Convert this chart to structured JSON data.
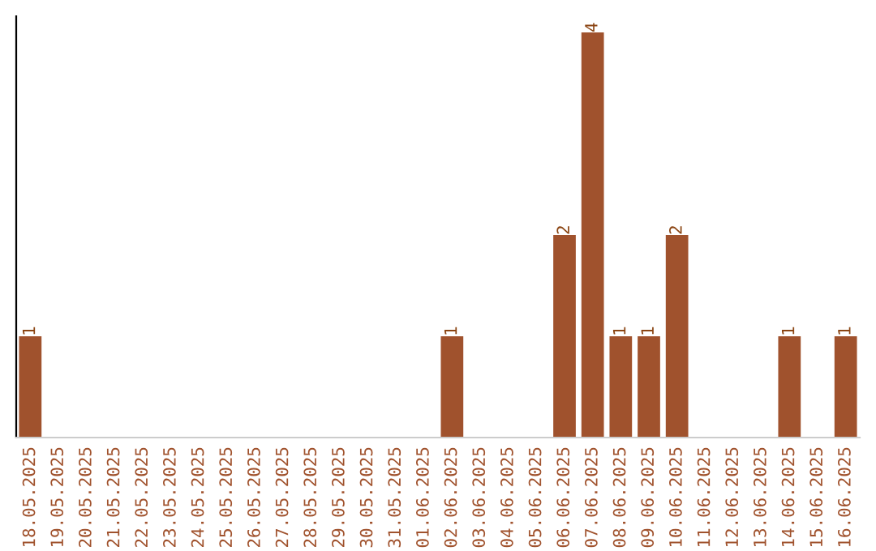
{
  "chart_data": {
    "type": "bar",
    "categories": [
      "18.05.2025",
      "19.05.2025",
      "20.05.2025",
      "21.05.2025",
      "22.05.2025",
      "23.05.2025",
      "24.05.2025",
      "25.05.2025",
      "26.05.2025",
      "27.05.2025",
      "28.05.2025",
      "29.05.2025",
      "30.05.2025",
      "31.05.2025",
      "01.06.2025",
      "02.06.2025",
      "03.06.2025",
      "04.06.2025",
      "05.06.2025",
      "06.06.2025",
      "07.06.2025",
      "08.06.2025",
      "09.06.2025",
      "10.06.2025",
      "11.06.2025",
      "12.06.2025",
      "13.06.2025",
      "14.06.2025",
      "15.06.2025",
      "16.06.2025"
    ],
    "values": [
      1,
      0,
      0,
      0,
      0,
      0,
      0,
      0,
      0,
      0,
      0,
      0,
      0,
      0,
      0,
      1,
      0,
      0,
      0,
      2,
      4,
      1,
      1,
      2,
      0,
      0,
      0,
      1,
      0,
      1
    ],
    "value_labels": [
      "1",
      null,
      null,
      null,
      null,
      null,
      null,
      null,
      null,
      null,
      null,
      null,
      null,
      null,
      null,
      "1",
      null,
      null,
      null,
      "2",
      "4",
      "1",
      "1",
      "2",
      null,
      null,
      null,
      "1",
      null,
      "1"
    ],
    "color": "#a0522d",
    "grid": false,
    "legend": false
  }
}
